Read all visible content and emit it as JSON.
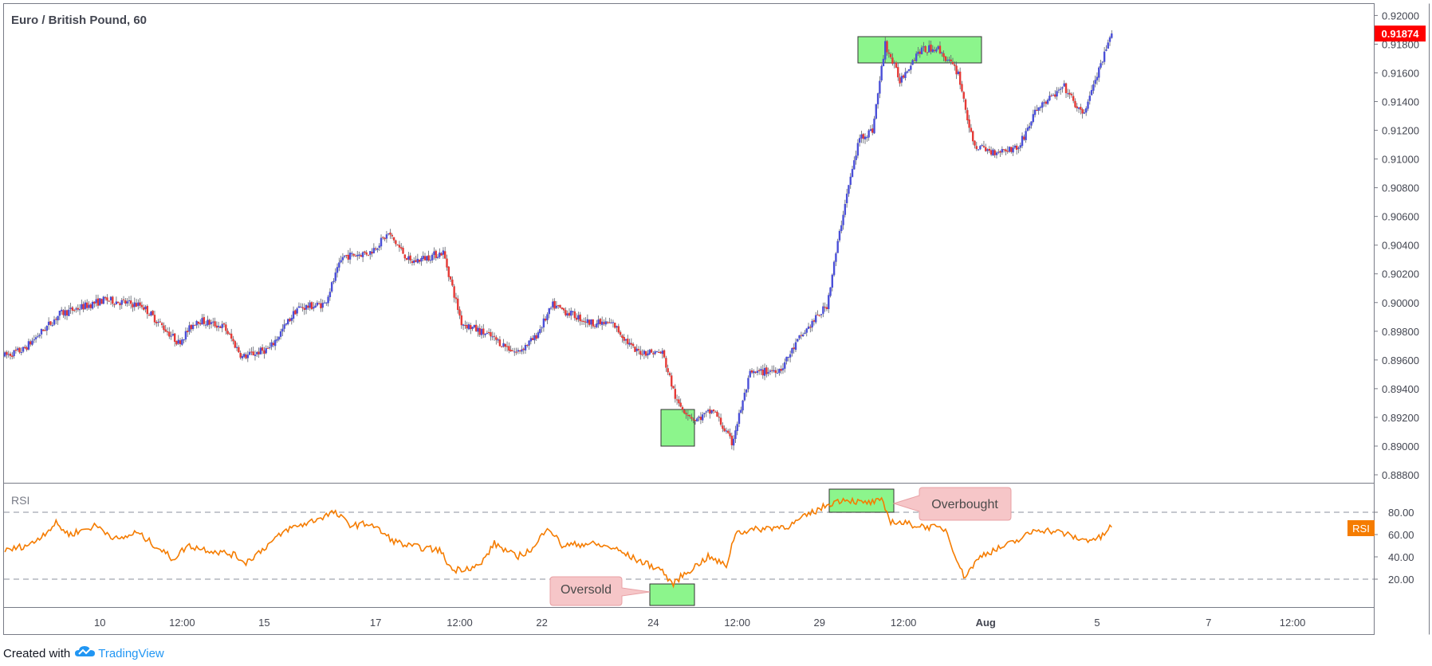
{
  "title": "Euro / British Pound, 60",
  "footer": {
    "created_with": "Created with",
    "brand": "TradingView",
    "logo_icon": "tradingview-cloud-icon"
  },
  "colors": {
    "bull": "#4a4fd8",
    "bear": "#e53935",
    "rsi": "#f57c00",
    "highlight": "#8cf58c",
    "callout": "#f6c6c8",
    "price_tag": "#ff0000"
  },
  "chart_data": [
    {
      "type": "candlestick",
      "symbol": "Euro / British Pound",
      "interval": "60",
      "last_price": "0.91874",
      "ylim": [
        0.8875,
        0.9208
      ],
      "y_ticks": [
        "0.88800",
        "0.89000",
        "0.89200",
        "0.89400",
        "0.89600",
        "0.89800",
        "0.90000",
        "0.90200",
        "0.90400",
        "0.90600",
        "0.90800",
        "0.91000",
        "0.91200",
        "0.91400",
        "0.91600",
        "0.91800",
        "0.92000"
      ],
      "x_tick_labels": [
        "10",
        "12:00",
        "15",
        "17",
        "12:00",
        "22",
        "24",
        "12:00",
        "29",
        "12:00",
        "Aug",
        "5",
        "7",
        "12:00"
      ],
      "x_tick_index": [
        52,
        97,
        142,
        203,
        249,
        294,
        355,
        401,
        446,
        492,
        537,
        598,
        659,
        705
      ],
      "bar_count": 750,
      "keypoints": [
        [
          0,
          0.8963
        ],
        [
          10,
          0.8967
        ],
        [
          30,
          0.8992
        ],
        [
          55,
          0.9002
        ],
        [
          75,
          0.8998
        ],
        [
          95,
          0.8972
        ],
        [
          105,
          0.8988
        ],
        [
          120,
          0.8983
        ],
        [
          130,
          0.8962
        ],
        [
          145,
          0.8968
        ],
        [
          160,
          0.8996
        ],
        [
          175,
          0.8999
        ],
        [
          185,
          0.9032
        ],
        [
          200,
          0.9035
        ],
        [
          210,
          0.9048
        ],
        [
          222,
          0.9028
        ],
        [
          240,
          0.9035
        ],
        [
          250,
          0.8986
        ],
        [
          265,
          0.8977
        ],
        [
          280,
          0.8965
        ],
        [
          290,
          0.8975
        ],
        [
          300,
          0.8998
        ],
        [
          320,
          0.8986
        ],
        [
          333,
          0.8985
        ],
        [
          345,
          0.8966
        ],
        [
          360,
          0.8965
        ],
        [
          368,
          0.893
        ],
        [
          378,
          0.8918
        ],
        [
          388,
          0.8925
        ],
        [
          398,
          0.8902
        ],
        [
          408,
          0.895
        ],
        [
          425,
          0.8954
        ],
        [
          435,
          0.8975
        ],
        [
          450,
          0.8998
        ],
        [
          460,
          0.907
        ],
        [
          468,
          0.9115
        ],
        [
          475,
          0.912
        ],
        [
          482,
          0.918
        ],
        [
          490,
          0.9155
        ],
        [
          500,
          0.9175
        ],
        [
          510,
          0.9178
        ],
        [
          522,
          0.916
        ],
        [
          530,
          0.911
        ],
        [
          540,
          0.9105
        ],
        [
          555,
          0.9108
        ],
        [
          565,
          0.9135
        ],
        [
          580,
          0.915
        ],
        [
          590,
          0.913
        ],
        [
          600,
          0.9165
        ],
        [
          606,
          0.9187
        ]
      ]
    },
    {
      "type": "line",
      "name": "RSI",
      "ylim": [
        0,
        100
      ],
      "y_ticks": [
        "20.00",
        "40.00",
        "60.00",
        "80.00"
      ],
      "guide_levels": [
        20,
        80
      ],
      "keypoints": [
        [
          0,
          45
        ],
        [
          15,
          52
        ],
        [
          28,
          70
        ],
        [
          35,
          60
        ],
        [
          50,
          68
        ],
        [
          62,
          55
        ],
        [
          72,
          62
        ],
        [
          85,
          47
        ],
        [
          92,
          38
        ],
        [
          100,
          50
        ],
        [
          115,
          45
        ],
        [
          125,
          42
        ],
        [
          132,
          35
        ],
        [
          145,
          52
        ],
        [
          155,
          65
        ],
        [
          165,
          70
        ],
        [
          180,
          80
        ],
        [
          190,
          68
        ],
        [
          200,
          70
        ],
        [
          212,
          55
        ],
        [
          220,
          50
        ],
        [
          238,
          46
        ],
        [
          245,
          28
        ],
        [
          260,
          32
        ],
        [
          268,
          52
        ],
        [
          280,
          40
        ],
        [
          290,
          48
        ],
        [
          297,
          68
        ],
        [
          305,
          50
        ],
        [
          320,
          52
        ],
        [
          333,
          48
        ],
        [
          345,
          38
        ],
        [
          360,
          28
        ],
        [
          365,
          15
        ],
        [
          370,
          22
        ],
        [
          385,
          40
        ],
        [
          395,
          32
        ],
        [
          400,
          62
        ],
        [
          418,
          66
        ],
        [
          430,
          68
        ],
        [
          440,
          78
        ],
        [
          452,
          88
        ],
        [
          460,
          92
        ],
        [
          470,
          88
        ],
        [
          480,
          90
        ],
        [
          485,
          72
        ],
        [
          500,
          68
        ],
        [
          515,
          65
        ],
        [
          525,
          22
        ],
        [
          535,
          42
        ],
        [
          545,
          48
        ],
        [
          555,
          55
        ],
        [
          565,
          65
        ],
        [
          578,
          62
        ],
        [
          590,
          55
        ],
        [
          600,
          57
        ],
        [
          606,
          68
        ]
      ]
    }
  ],
  "annotations": {
    "overbought": "Overbought",
    "oversold": "Oversold",
    "rsi_tag": "RSI",
    "rsi_label": "RSI"
  }
}
